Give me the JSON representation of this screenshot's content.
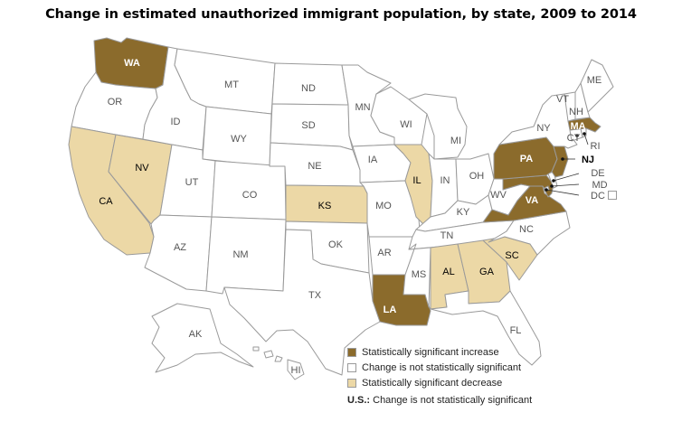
{
  "title": "Change in estimated unauthorized immigrant population, by state, 2009 to 2014",
  "colors": {
    "increase": "#8b6b2c",
    "no_change": "#ffffff",
    "decrease": "#ecd8a6",
    "border": "#9a9a9a"
  },
  "legend": {
    "increase": "Statistically significant increase",
    "no_change": "Change is not statistically significant",
    "decrease": "Statistically significant decrease"
  },
  "note": {
    "prefix": "U.S.:",
    "text": " Change is not statistically significant"
  },
  "states": {
    "WA": {
      "label": "WA",
      "status": "increase"
    },
    "OR": {
      "label": "OR",
      "status": "no_change"
    },
    "CA": {
      "label": "CA",
      "status": "decrease"
    },
    "NV": {
      "label": "NV",
      "status": "decrease"
    },
    "ID": {
      "label": "ID",
      "status": "no_change"
    },
    "MT": {
      "label": "MT",
      "status": "no_change"
    },
    "WY": {
      "label": "WY",
      "status": "no_change"
    },
    "UT": {
      "label": "UT",
      "status": "no_change"
    },
    "AZ": {
      "label": "AZ",
      "status": "no_change"
    },
    "CO": {
      "label": "CO",
      "status": "no_change"
    },
    "NM": {
      "label": "NM",
      "status": "no_change"
    },
    "ND": {
      "label": "ND",
      "status": "no_change"
    },
    "SD": {
      "label": "SD",
      "status": "no_change"
    },
    "NE": {
      "label": "NE",
      "status": "no_change"
    },
    "KS": {
      "label": "KS",
      "status": "decrease"
    },
    "OK": {
      "label": "OK",
      "status": "no_change"
    },
    "TX": {
      "label": "TX",
      "status": "no_change"
    },
    "MN": {
      "label": "MN",
      "status": "no_change"
    },
    "IA": {
      "label": "IA",
      "status": "no_change"
    },
    "MO": {
      "label": "MO",
      "status": "no_change"
    },
    "AR": {
      "label": "AR",
      "status": "no_change"
    },
    "LA": {
      "label": "LA",
      "status": "increase"
    },
    "WI": {
      "label": "WI",
      "status": "no_change"
    },
    "IL": {
      "label": "IL",
      "status": "decrease"
    },
    "MI": {
      "label": "MI",
      "status": "no_change"
    },
    "IN": {
      "label": "IN",
      "status": "no_change"
    },
    "OH": {
      "label": "OH",
      "status": "no_change"
    },
    "KY": {
      "label": "KY",
      "status": "no_change"
    },
    "TN": {
      "label": "TN",
      "status": "no_change"
    },
    "MS": {
      "label": "MS",
      "status": "no_change"
    },
    "AL": {
      "label": "AL",
      "status": "decrease"
    },
    "GA": {
      "label": "GA",
      "status": "decrease"
    },
    "SC": {
      "label": "SC",
      "status": "decrease"
    },
    "NC": {
      "label": "NC",
      "status": "no_change"
    },
    "FL": {
      "label": "FL",
      "status": "no_change"
    },
    "VA": {
      "label": "VA",
      "status": "increase"
    },
    "WV": {
      "label": "WV",
      "status": "no_change"
    },
    "PA": {
      "label": "PA",
      "status": "increase"
    },
    "NY": {
      "label": "NY",
      "status": "no_change"
    },
    "NJ": {
      "label": "NJ",
      "status": "increase"
    },
    "DE": {
      "label": "DE",
      "status": "no_change"
    },
    "MD": {
      "label": "MD",
      "status": "increase"
    },
    "DC": {
      "label": "DC",
      "status": "no_change"
    },
    "CT": {
      "label": "CT",
      "status": "no_change"
    },
    "RI": {
      "label": "RI",
      "status": "no_change"
    },
    "MA": {
      "label": "MA",
      "status": "increase"
    },
    "VT": {
      "label": "VT",
      "status": "no_change"
    },
    "NH": {
      "label": "NH",
      "status": "no_change"
    },
    "ME": {
      "label": "ME",
      "status": "no_change"
    },
    "AK": {
      "label": "AK",
      "status": "no_change"
    },
    "HI": {
      "label": "HI",
      "status": "no_change"
    }
  }
}
